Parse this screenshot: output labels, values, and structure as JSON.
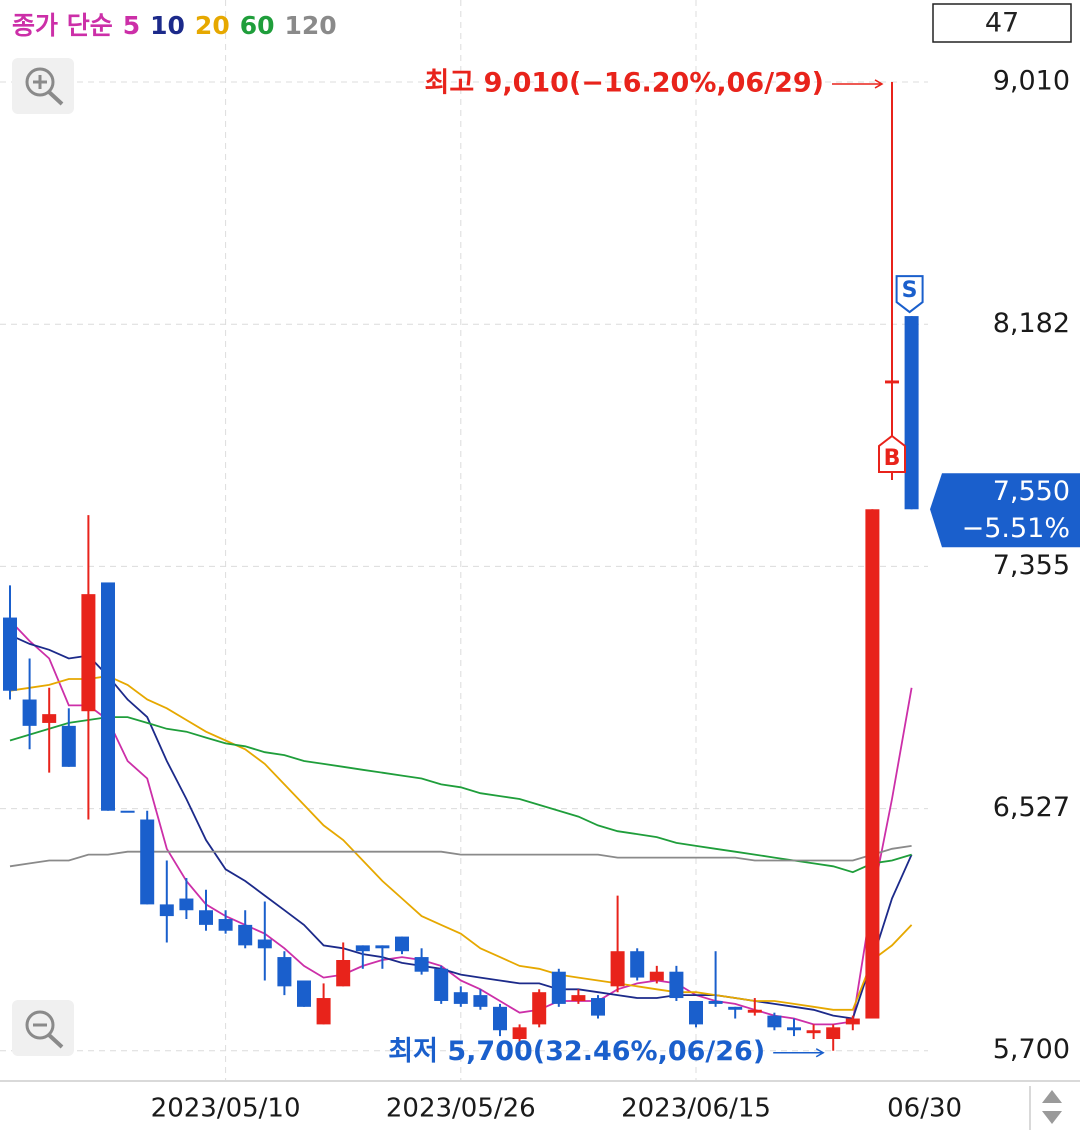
{
  "count_box": "47",
  "chart_data": {
    "type": "candlestick",
    "legend_label": "종가 단순",
    "legend_color": "#cc2fa8",
    "categories": [
      null,
      null,
      null,
      null,
      null,
      null,
      null,
      null,
      null,
      null,
      null,
      "2023/05/10",
      null,
      null,
      null,
      null,
      null,
      null,
      null,
      null,
      null,
      null,
      null,
      "2023/05/26",
      null,
      null,
      null,
      null,
      null,
      null,
      null,
      null,
      null,
      null,
      null,
      "2023/06/15",
      null,
      null,
      null,
      null,
      null,
      null,
      null,
      null,
      null,
      null,
      "06/30"
    ],
    "open": [
      7180,
      6900,
      6820,
      6810,
      6860,
      7300,
      6520,
      6490,
      6200,
      6220,
      6180,
      6150,
      6130,
      6080,
      6020,
      5940,
      5790,
      5920,
      6060,
      6060,
      6090,
      6020,
      5980,
      5900,
      5890,
      5850,
      5740,
      5790,
      5970,
      5870,
      5880,
      5920,
      6040,
      5940,
      5970,
      5870,
      5870,
      5850,
      5830,
      5820,
      5780,
      5760,
      5740,
      5790,
      5810,
      7980,
      8210
    ],
    "high": [
      7290,
      7040,
      6940,
      6870,
      7530,
      7300,
      6520,
      6520,
      6350,
      6290,
      6250,
      6180,
      6180,
      6210,
      6040,
      5940,
      5930,
      6070,
      6060,
      6060,
      6090,
      6050,
      5990,
      5920,
      5910,
      5860,
      5790,
      5910,
      5980,
      5910,
      5890,
      6230,
      6050,
      5990,
      5990,
      5870,
      6040,
      5850,
      5880,
      5830,
      5810,
      5790,
      5790,
      5820,
      7550,
      9010,
      8210
    ],
    "low": [
      6900,
      6730,
      6650,
      6670,
      6490,
      6520,
      6520,
      6200,
      6070,
      6150,
      6110,
      6100,
      6050,
      5940,
      5890,
      5850,
      5790,
      5920,
      5980,
      5980,
      6030,
      5960,
      5860,
      5850,
      5840,
      5750,
      5730,
      5780,
      5850,
      5860,
      5810,
      5900,
      5940,
      5930,
      5870,
      5780,
      5850,
      5810,
      5820,
      5770,
      5750,
      5740,
      5700,
      5770,
      5810,
      7650,
      7550
    ],
    "close": [
      6930,
      6810,
      6850,
      6670,
      7260,
      6520,
      6520,
      6200,
      6160,
      6180,
      6130,
      6110,
      6060,
      6050,
      5920,
      5850,
      5880,
      6010,
      6040,
      6050,
      6040,
      5970,
      5870,
      5860,
      5850,
      5770,
      5780,
      5900,
      5860,
      5890,
      5820,
      6040,
      5950,
      5970,
      5880,
      5790,
      5860,
      5840,
      5840,
      5780,
      5770,
      5770,
      5780,
      5810,
      7550,
      7990,
      7550
    ],
    "up_color": "#e8231b",
    "down_color": "#1a5fcc",
    "series": [
      {
        "name": "5",
        "color": "#cc2fa8",
        "values": [
          7170,
          7100,
          7040,
          6880,
          6880,
          6830,
          6690,
          6630,
          6390,
          6280,
          6200,
          6160,
          6130,
          6100,
          6050,
          5990,
          5950,
          5960,
          5990,
          6010,
          6020,
          6010,
          5990,
          5940,
          5910,
          5870,
          5830,
          5840,
          5870,
          5870,
          5870,
          5910,
          5930,
          5940,
          5930,
          5890,
          5870,
          5860,
          5840,
          5820,
          5810,
          5790,
          5790,
          5800,
          6220,
          6560,
          6940
        ]
      },
      {
        "name": "10",
        "color": "#1c2a8a",
        "values": [
          7120,
          7090,
          7070,
          7040,
          7050,
          6980,
          6900,
          6840,
          6690,
          6560,
          6420,
          6320,
          6280,
          6230,
          6180,
          6130,
          6060,
          6050,
          6030,
          6020,
          6000,
          5990,
          5980,
          5960,
          5950,
          5940,
          5930,
          5930,
          5910,
          5910,
          5900,
          5890,
          5880,
          5880,
          5890,
          5890,
          5890,
          5880,
          5870,
          5860,
          5850,
          5840,
          5820,
          5810,
          6010,
          6220,
          6370
        ]
      },
      {
        "name": "20",
        "color": "#e6a800",
        "values": [
          6930,
          6940,
          6950,
          6970,
          6970,
          6980,
          6950,
          6900,
          6870,
          6830,
          6790,
          6760,
          6730,
          6680,
          6610,
          6540,
          6470,
          6420,
          6350,
          6280,
          6220,
          6160,
          6130,
          6100,
          6050,
          6020,
          5990,
          5980,
          5960,
          5950,
          5940,
          5930,
          5920,
          5910,
          5900,
          5900,
          5890,
          5880,
          5870,
          5870,
          5860,
          5850,
          5840,
          5840,
          6010,
          6060,
          6130
        ]
      },
      {
        "name": "60",
        "color": "#1f9e3b",
        "values": [
          6760,
          6780,
          6800,
          6820,
          6830,
          6840,
          6840,
          6820,
          6800,
          6790,
          6770,
          6750,
          6740,
          6720,
          6710,
          6690,
          6680,
          6670,
          6660,
          6650,
          6640,
          6630,
          6610,
          6600,
          6580,
          6570,
          6560,
          6540,
          6520,
          6500,
          6470,
          6450,
          6440,
          6430,
          6410,
          6400,
          6390,
          6380,
          6370,
          6360,
          6350,
          6340,
          6330,
          6310,
          6340,
          6350,
          6370
        ]
      },
      {
        "name": "120",
        "color": "#8a8a8a",
        "values": [
          6330,
          6340,
          6350,
          6350,
          6370,
          6370,
          6380,
          6380,
          6380,
          6380,
          6380,
          6380,
          6380,
          6380,
          6380,
          6380,
          6380,
          6380,
          6380,
          6380,
          6380,
          6380,
          6380,
          6370,
          6370,
          6370,
          6370,
          6370,
          6370,
          6370,
          6370,
          6360,
          6360,
          6360,
          6360,
          6360,
          6360,
          6360,
          6350,
          6350,
          6350,
          6350,
          6350,
          6350,
          6370,
          6390,
          6400
        ]
      }
    ],
    "ylim": [
      5600,
      9290
    ],
    "yticks": [
      {
        "value": 5700,
        "label": "5,700"
      },
      {
        "value": 6527,
        "label": "6,527"
      },
      {
        "value": 7355,
        "label": "7,355"
      },
      {
        "value": 8182,
        "label": "8,182"
      },
      {
        "value": 9010,
        "label": "9,010"
      }
    ],
    "grid": true,
    "annotations": {
      "high": "최고 9,010(−16.20%,06/29)",
      "low": "최저 5,700(32.46%,06/26)"
    },
    "current_price": {
      "value": 7550,
      "label": "7,550",
      "change": "−5.51%"
    },
    "markers": {
      "buy": "B",
      "sell": "S"
    }
  }
}
